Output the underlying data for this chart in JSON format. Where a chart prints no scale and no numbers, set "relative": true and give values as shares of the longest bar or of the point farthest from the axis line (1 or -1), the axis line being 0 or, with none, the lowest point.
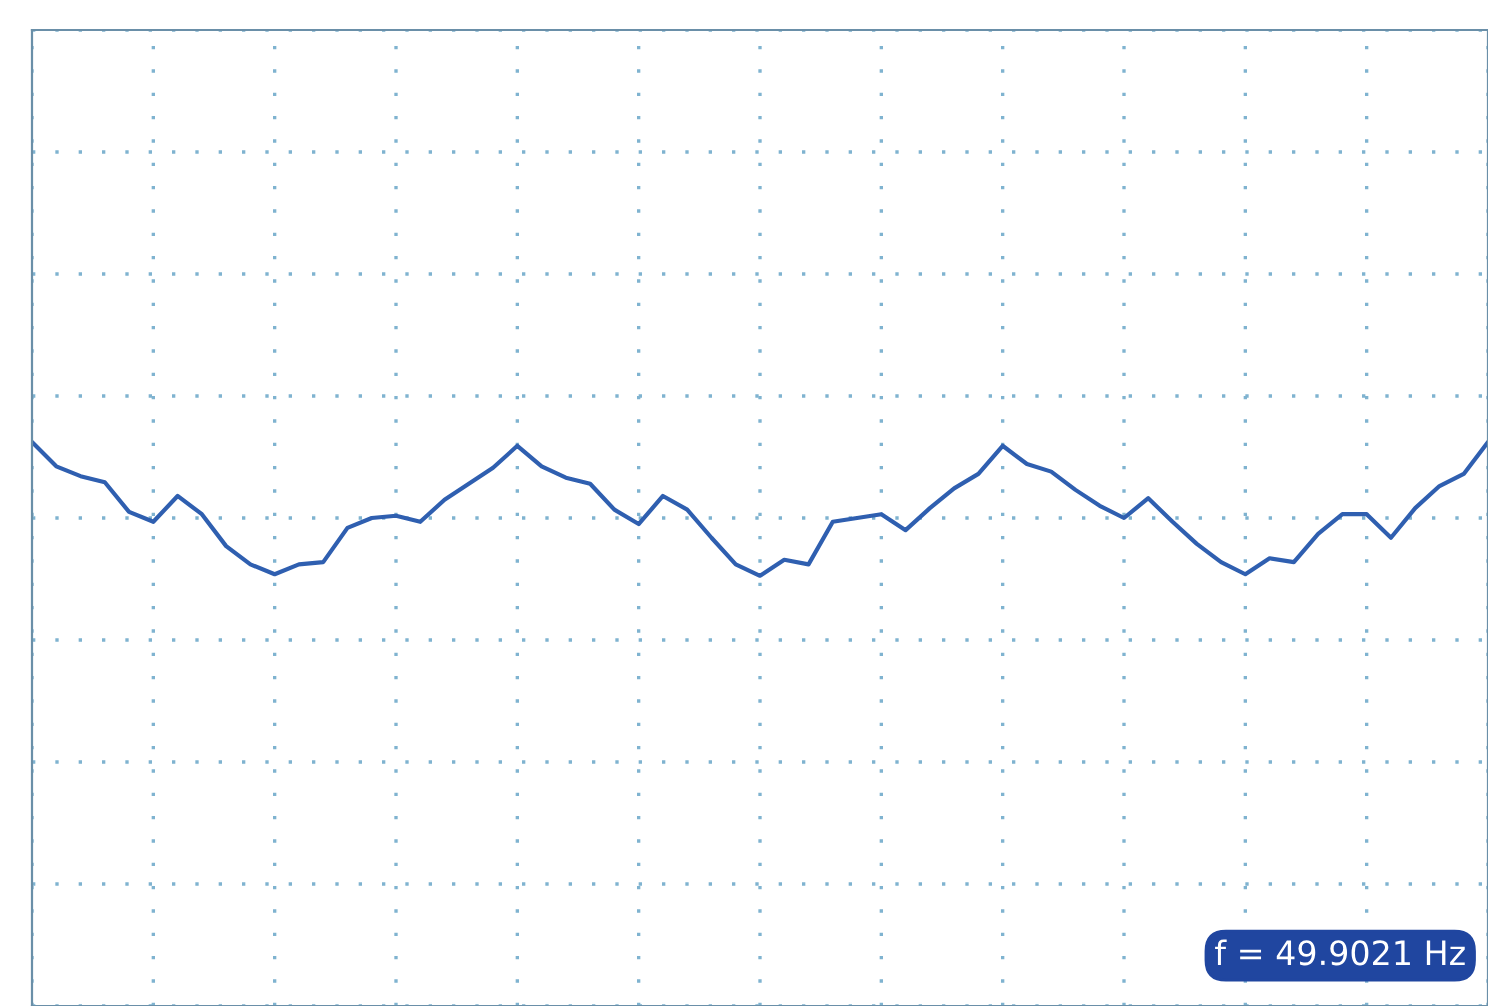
{
  "chart_data": {
    "type": "line",
    "relative": true,
    "grid": true,
    "tick_labels": false,
    "categories": [
      null,
      null,
      null,
      null,
      null,
      null,
      null,
      null,
      null,
      null,
      null,
      null,
      null,
      null,
      null,
      null,
      null,
      null,
      null,
      null,
      null,
      null,
      null,
      null,
      null,
      null,
      null,
      null,
      null,
      null,
      null,
      null,
      null,
      null,
      null,
      null,
      null,
      null,
      null,
      null,
      null,
      null,
      null,
      null,
      null,
      null,
      null,
      null,
      null,
      null,
      null,
      null,
      null,
      null,
      null,
      null,
      null,
      null,
      null,
      null,
      null
    ],
    "series": [
      {
        "color": "#2f5fb0",
        "values": [
          1.0,
          0.68,
          0.55,
          0.47,
          0.08,
          -0.05,
          0.29,
          0.05,
          -0.37,
          -0.61,
          -0.74,
          -0.61,
          -0.58,
          -0.13,
          0,
          0.03,
          -0.05,
          0.24,
          0.45,
          0.66,
          0.95,
          0.68,
          0.53,
          0.45,
          0.11,
          -0.08,
          0.29,
          0.11,
          -0.26,
          -0.61,
          -0.76,
          -0.55,
          -0.61,
          -0.05,
          0,
          0.05,
          -0.16,
          0.13,
          0.39,
          0.58,
          0.95,
          0.71,
          0.61,
          0.37,
          0.16,
          0,
          0.26,
          -0.05,
          -0.34,
          -0.58,
          -0.74,
          -0.53,
          -0.58,
          -0.21,
          0.05,
          0.05,
          -0.26,
          0.13,
          0.42,
          0.58,
          1.0
        ]
      }
    ],
    "annotations": [
      "f = 49.9021 Hz"
    ]
  }
}
